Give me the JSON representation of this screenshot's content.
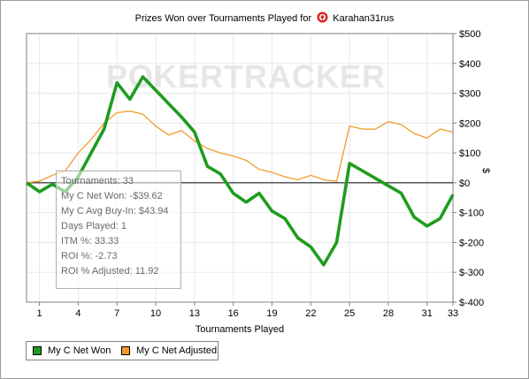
{
  "title": "Prizes Won over Tournaments Played for",
  "player_name": "Karahan31rus",
  "player_icon": "poker-spade-chip-icon",
  "watermark": "POKERTRACKER",
  "colors": {
    "net_won": "#1f9c1f",
    "net_adjusted": "#f39a2a",
    "grid": "#e8e8e8",
    "zero_line": "#000000"
  },
  "tooltip": {
    "lines": [
      "Tournaments: 33",
      "My C Net Won: -$39.62",
      "My C Avg Buy-In: $43.94",
      "Days Played: 1",
      "ITM %: 33.33",
      "ROI %: -2.73",
      "ROI % Adjusted: 11.92"
    ]
  },
  "legend": {
    "items": [
      {
        "label": "My C Net Won",
        "color": "#1f9c1f"
      },
      {
        "label": "My C Net Adjusted",
        "color": "#f39a2a"
      }
    ]
  },
  "chart_data": {
    "type": "line",
    "title": "Prizes Won over Tournaments Played for Karahan31rus",
    "xlabel": "Tournaments Played",
    "ylabel": "$",
    "xlim": [
      0,
      33
    ],
    "ylim": [
      -400,
      500
    ],
    "x_ticks": [
      1,
      4,
      7,
      10,
      13,
      16,
      19,
      22,
      25,
      28,
      31,
      33
    ],
    "y_ticks": [
      500,
      400,
      300,
      200,
      100,
      0,
      -100,
      -200,
      -300,
      -400
    ],
    "y_tick_labels": [
      "$500",
      "$400",
      "$300",
      "$200",
      "$100",
      "$0",
      "$-100",
      "$-200",
      "$-300",
      "$-400"
    ],
    "grid": true,
    "legend_position": "bottom-left",
    "y_axis_side": "right",
    "series": [
      {
        "name": "My C Net Won",
        "x": [
          0,
          1,
          2,
          3,
          4,
          5,
          6,
          7,
          8,
          9,
          10,
          11,
          12,
          13,
          14,
          15,
          16,
          17,
          18,
          19,
          20,
          21,
          22,
          23,
          24,
          25,
          26,
          27,
          28,
          29,
          30,
          31,
          32,
          33
        ],
        "values": [
          0,
          -30,
          -5,
          -30,
          20,
          100,
          180,
          335,
          280,
          355,
          310,
          265,
          220,
          170,
          55,
          30,
          -35,
          -65,
          -35,
          -95,
          -120,
          -185,
          -215,
          -275,
          -200,
          65,
          40,
          15,
          -10,
          -35,
          -115,
          -145,
          -120,
          -40
        ]
      },
      {
        "name": "My C Net Adjusted",
        "x": [
          0,
          1,
          2,
          3,
          4,
          5,
          6,
          7,
          8,
          9,
          10,
          11,
          12,
          13,
          14,
          15,
          16,
          17,
          18,
          19,
          20,
          21,
          22,
          23,
          24,
          25,
          26,
          27,
          28,
          29,
          30,
          31,
          32,
          33
        ],
        "values": [
          0,
          5,
          25,
          40,
          100,
          145,
          200,
          235,
          240,
          230,
          190,
          160,
          175,
          140,
          115,
          100,
          90,
          75,
          45,
          35,
          20,
          10,
          25,
          10,
          5,
          190,
          180,
          180,
          205,
          195,
          165,
          150,
          180,
          170
        ]
      }
    ]
  }
}
